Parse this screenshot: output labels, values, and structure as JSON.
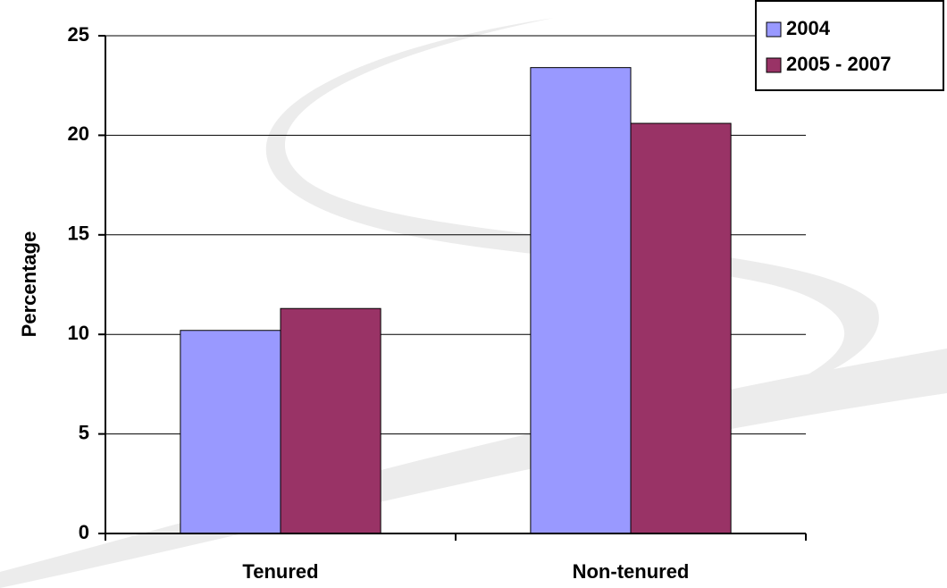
{
  "chart_data": {
    "type": "bar",
    "y_label": "Percentage",
    "categories": [
      "Tenured",
      "Non-tenured"
    ],
    "series": [
      {
        "name": "2004",
        "color": "#9999ff",
        "values": [
          10.2,
          23.4
        ]
      },
      {
        "name": "2005 - 2007",
        "color": "#993366",
        "values": [
          11.3,
          20.6
        ]
      }
    ],
    "ylim": [
      0,
      25
    ],
    "yticks": [
      0,
      5,
      10,
      15,
      20,
      25
    ],
    "grid": true,
    "legend": "top-right"
  }
}
